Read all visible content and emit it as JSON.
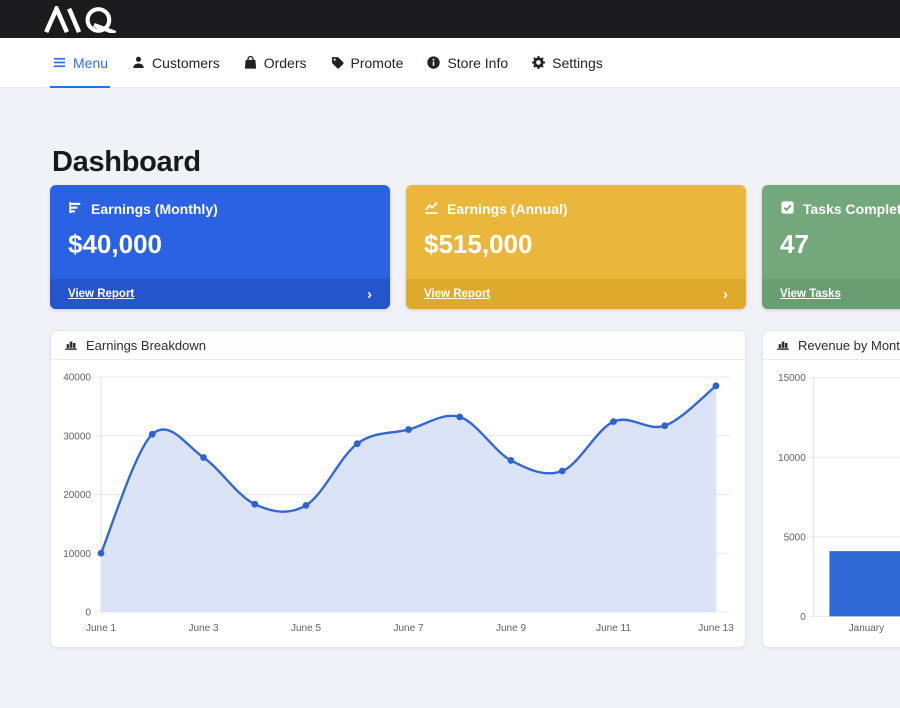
{
  "brand": {
    "logo_text": "AQ",
    "bar_color": "#1b1b1d"
  },
  "nav": {
    "active_color": "#2d6ce5",
    "items": [
      {
        "label": "Menu",
        "icon": "hamburger",
        "active": true
      },
      {
        "label": "Customers",
        "icon": "person",
        "active": false
      },
      {
        "label": "Orders",
        "icon": "shopping-bag",
        "active": false
      },
      {
        "label": "Promote",
        "icon": "tag",
        "active": false
      },
      {
        "label": "Store Info",
        "icon": "info-circle",
        "active": false
      },
      {
        "label": "Settings",
        "icon": "gear",
        "active": false
      }
    ]
  },
  "page": {
    "title": "Dashboard"
  },
  "cards": [
    {
      "title": "Earnings (Monthly)",
      "value": "$40,000",
      "link_label": "View Report",
      "icon": "chart-bar",
      "bg": "#2b62e4",
      "footer_bg": "#2455cc",
      "chevron": "›"
    },
    {
      "title": "Earnings (Annual)",
      "value": "$515,000",
      "link_label": "View Report",
      "icon": "chart-line",
      "bg": "#eab73c",
      "footer_bg": "#dfa92b",
      "chevron": "›"
    },
    {
      "title": "Tasks Completed",
      "value": "47",
      "link_label": "View Tasks",
      "icon": "check-square",
      "bg": "#73a87c",
      "footer_bg": "#699e72",
      "chevron": "›"
    }
  ],
  "panels": [
    {
      "title": "Earnings Breakdown"
    },
    {
      "title": "Revenue by Month"
    }
  ],
  "chart_data": [
    {
      "type": "line",
      "title": "Earnings Breakdown",
      "x": [
        "June 1",
        "June 2",
        "June 3",
        "June 4",
        "June 5",
        "June 6",
        "June 7",
        "June 8",
        "June 9",
        "June 10",
        "June 11",
        "June 12",
        "June 13"
      ],
      "values": [
        10000,
        30250,
        26300,
        18350,
        18150,
        28650,
        31050,
        33200,
        25800,
        24000,
        32400,
        31700,
        38500
      ],
      "ylim": [
        0,
        40000
      ],
      "yticks": [
        0,
        10000,
        20000,
        30000,
        40000
      ],
      "xtick_every": 2,
      "grid": true,
      "legend": "none",
      "line_color": "#3468d1",
      "fill_color": "#dbe4f6",
      "point_color": "#2e63cd"
    },
    {
      "type": "bar",
      "title": "Revenue by Month",
      "categories": [
        "January"
      ],
      "values": [
        4100
      ],
      "ylim": [
        0,
        15000
      ],
      "yticks": [
        0,
        5000,
        10000,
        15000
      ],
      "grid": true,
      "legend": "none",
      "bar_color": "#3069d6"
    }
  ]
}
